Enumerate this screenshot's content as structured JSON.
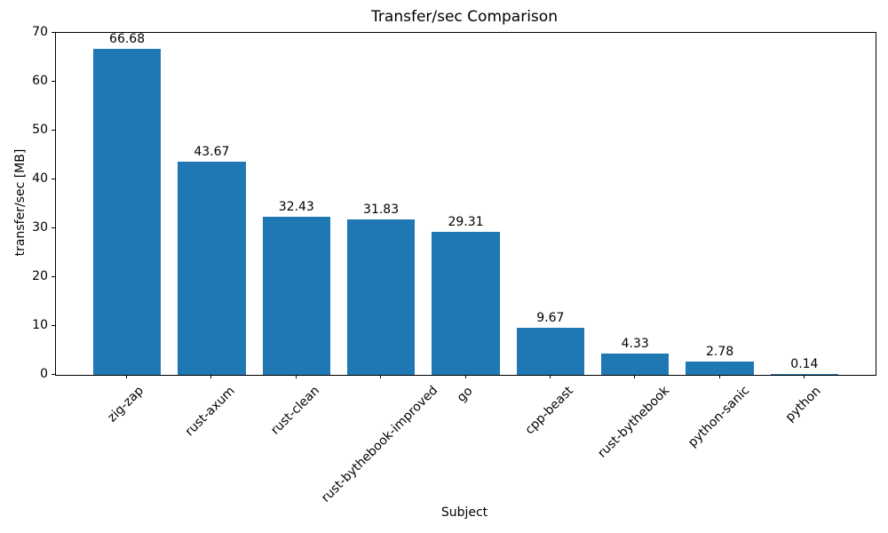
{
  "chart_data": {
    "type": "bar",
    "title": "Transfer/sec Comparison",
    "xlabel": "Subject",
    "ylabel": "transfer/sec [MB]",
    "categories": [
      "zig-zap",
      "rust-axum",
      "rust-clean",
      "rust-bythebook-improved",
      "go",
      "cpp-beast",
      "rust-bythebook",
      "python-sanic",
      "python"
    ],
    "values": [
      66.68,
      43.67,
      32.43,
      31.83,
      29.31,
      9.67,
      4.33,
      2.78,
      0.14
    ],
    "value_labels": [
      "66.68",
      "43.67",
      "32.43",
      "31.83",
      "29.31",
      "9.67",
      "4.33",
      "2.78",
      "0.14"
    ],
    "ylim": [
      0,
      70
    ],
    "yticks": [
      0,
      10,
      20,
      30,
      40,
      50,
      60,
      70
    ],
    "bar_color": "#1f77b4",
    "text_color": "#000000",
    "grid": false,
    "legend": null
  }
}
